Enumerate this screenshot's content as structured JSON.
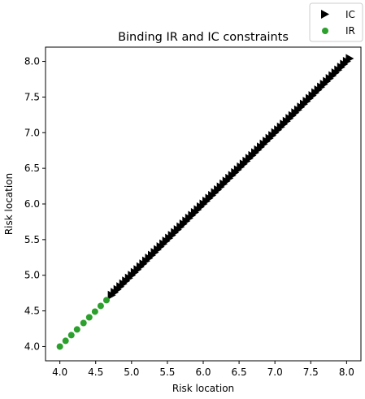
{
  "chart_data": {
    "type": "scatter",
    "title": "Binding IR and IC constraints",
    "xlabel": "Risk location",
    "ylabel": "Risk location",
    "xlim": [
      3.8,
      8.2
    ],
    "ylim": [
      3.8,
      8.2
    ],
    "x_ticks": [
      "4.0",
      "4.5",
      "5.0",
      "5.5",
      "6.0",
      "6.5",
      "7.0",
      "7.5",
      "8.0"
    ],
    "y_ticks": [
      "4.0",
      "4.5",
      "5.0",
      "5.5",
      "6.0",
      "6.5",
      "7.0",
      "7.5",
      "8.0"
    ],
    "grid": false,
    "legend_position": "top-right",
    "series": [
      {
        "name": "IC",
        "marker": "triangle-right",
        "color": "#000000",
        "range": [
          4.72,
          8.02
        ],
        "step": 0.04
      },
      {
        "name": "IR",
        "marker": "circle",
        "color": "#2ca02c",
        "x": [
          4.0,
          4.08,
          4.16,
          4.24,
          4.33,
          4.41,
          4.49,
          4.57,
          4.65
        ],
        "y": [
          4.0,
          4.08,
          4.16,
          4.24,
          4.33,
          4.41,
          4.49,
          4.57,
          4.65
        ]
      }
    ]
  }
}
